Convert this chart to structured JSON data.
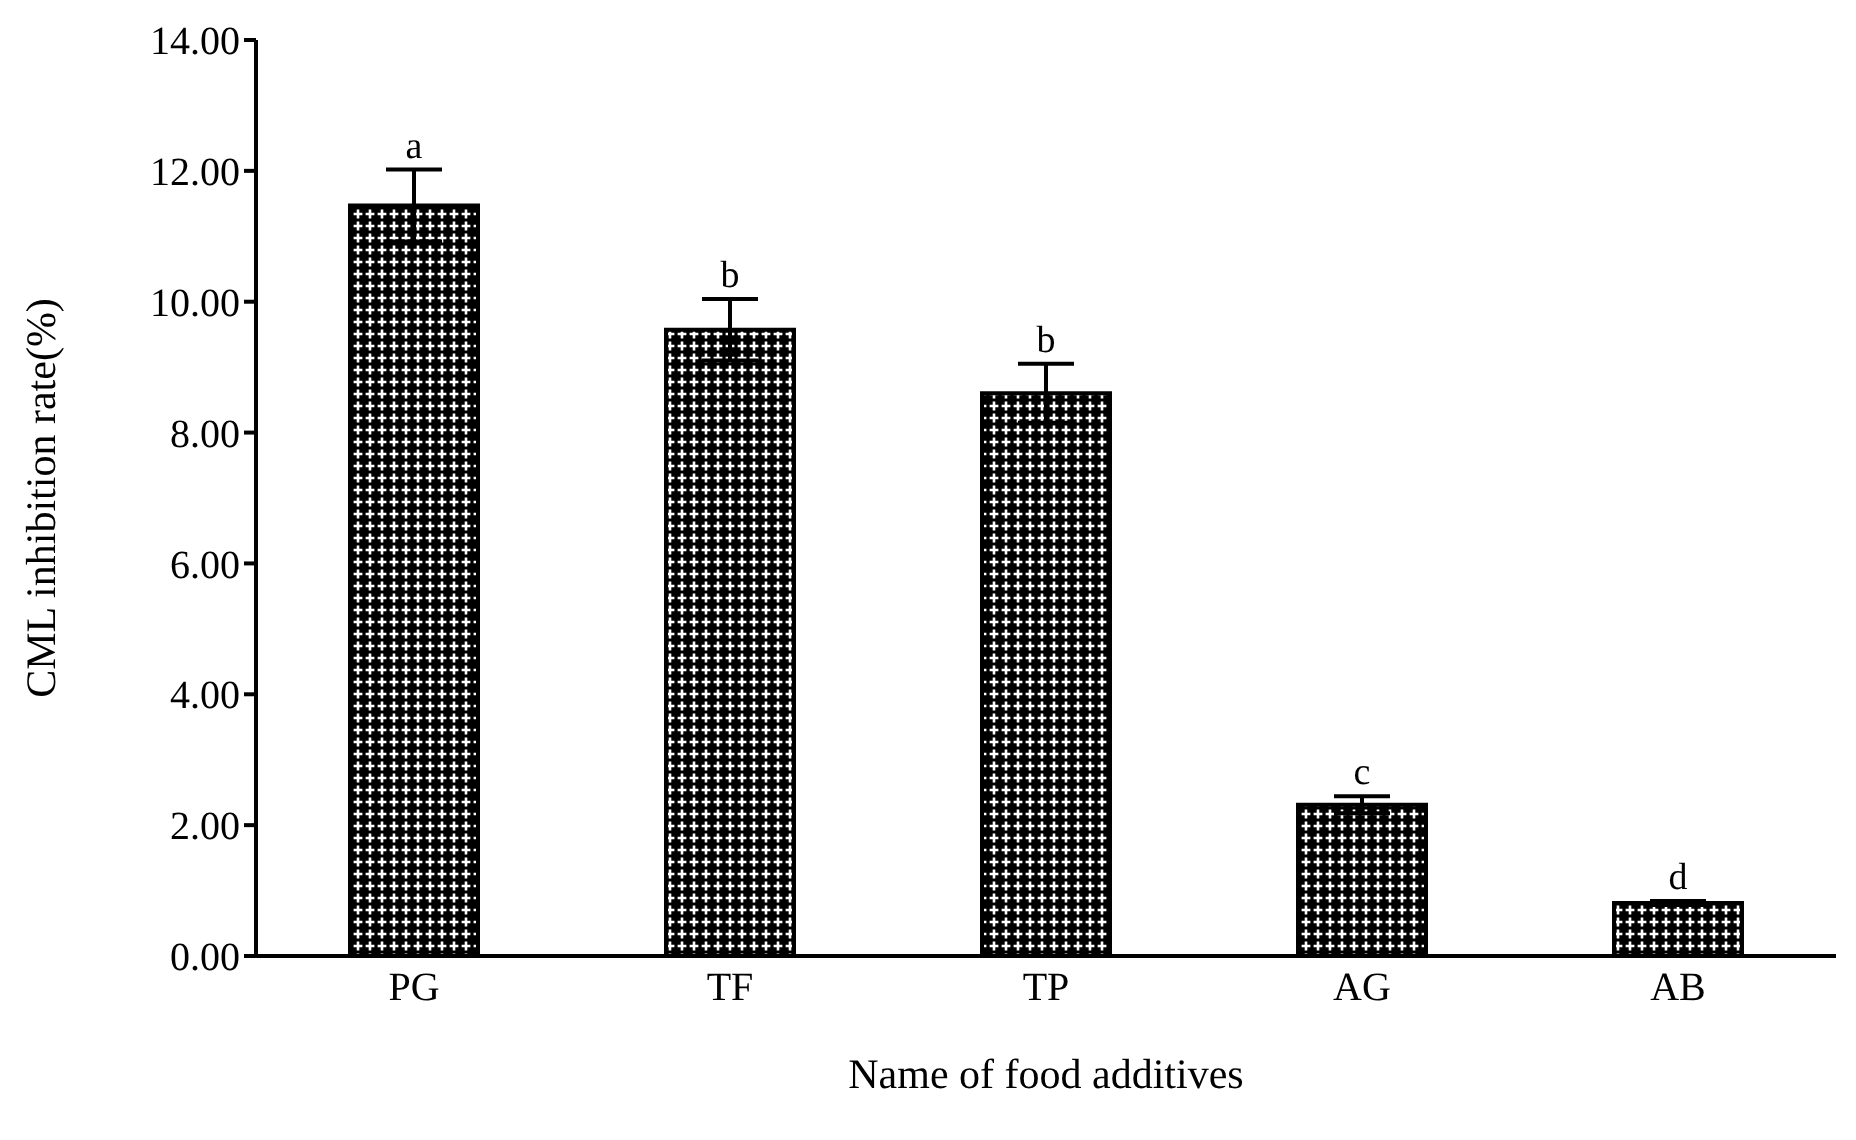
{
  "chart_data": {
    "type": "bar",
    "xlabel": "Name of food additives",
    "ylabel": "CML inhibition rate(%)",
    "categories": [
      "PG",
      "TF",
      "TP",
      "AG",
      "AB"
    ],
    "values": [
      11.47,
      9.57,
      8.6,
      2.31,
      0.81
    ],
    "errors": [
      0.55,
      0.47,
      0.45,
      0.13,
      0.03
    ],
    "color": "#000000",
    "ylim": [
      0,
      14
    ],
    "yticks": [
      {
        "value": 0,
        "label": "0.00"
      },
      {
        "value": 2,
        "label": "2.00"
      },
      {
        "value": 4,
        "label": "4.00"
      },
      {
        "value": 6,
        "label": "6.00"
      },
      {
        "value": 8,
        "label": "8.00"
      },
      {
        "value": 10,
        "label": "10.00"
      },
      {
        "value": 12,
        "label": "12.00"
      },
      {
        "value": 14,
        "label": "14.00"
      }
    ],
    "grid": false,
    "legend": false,
    "annotations": [
      {
        "text": "a",
        "x": "PG",
        "y": 12.02
      },
      {
        "text": "b",
        "x": "TF",
        "y": 10.04
      },
      {
        "text": "b",
        "x": "TP",
        "y": 9.05
      },
      {
        "text": "c",
        "x": "AG",
        "y": 2.44
      },
      {
        "text": "d",
        "x": "AB",
        "y": 0.84
      }
    ]
  }
}
